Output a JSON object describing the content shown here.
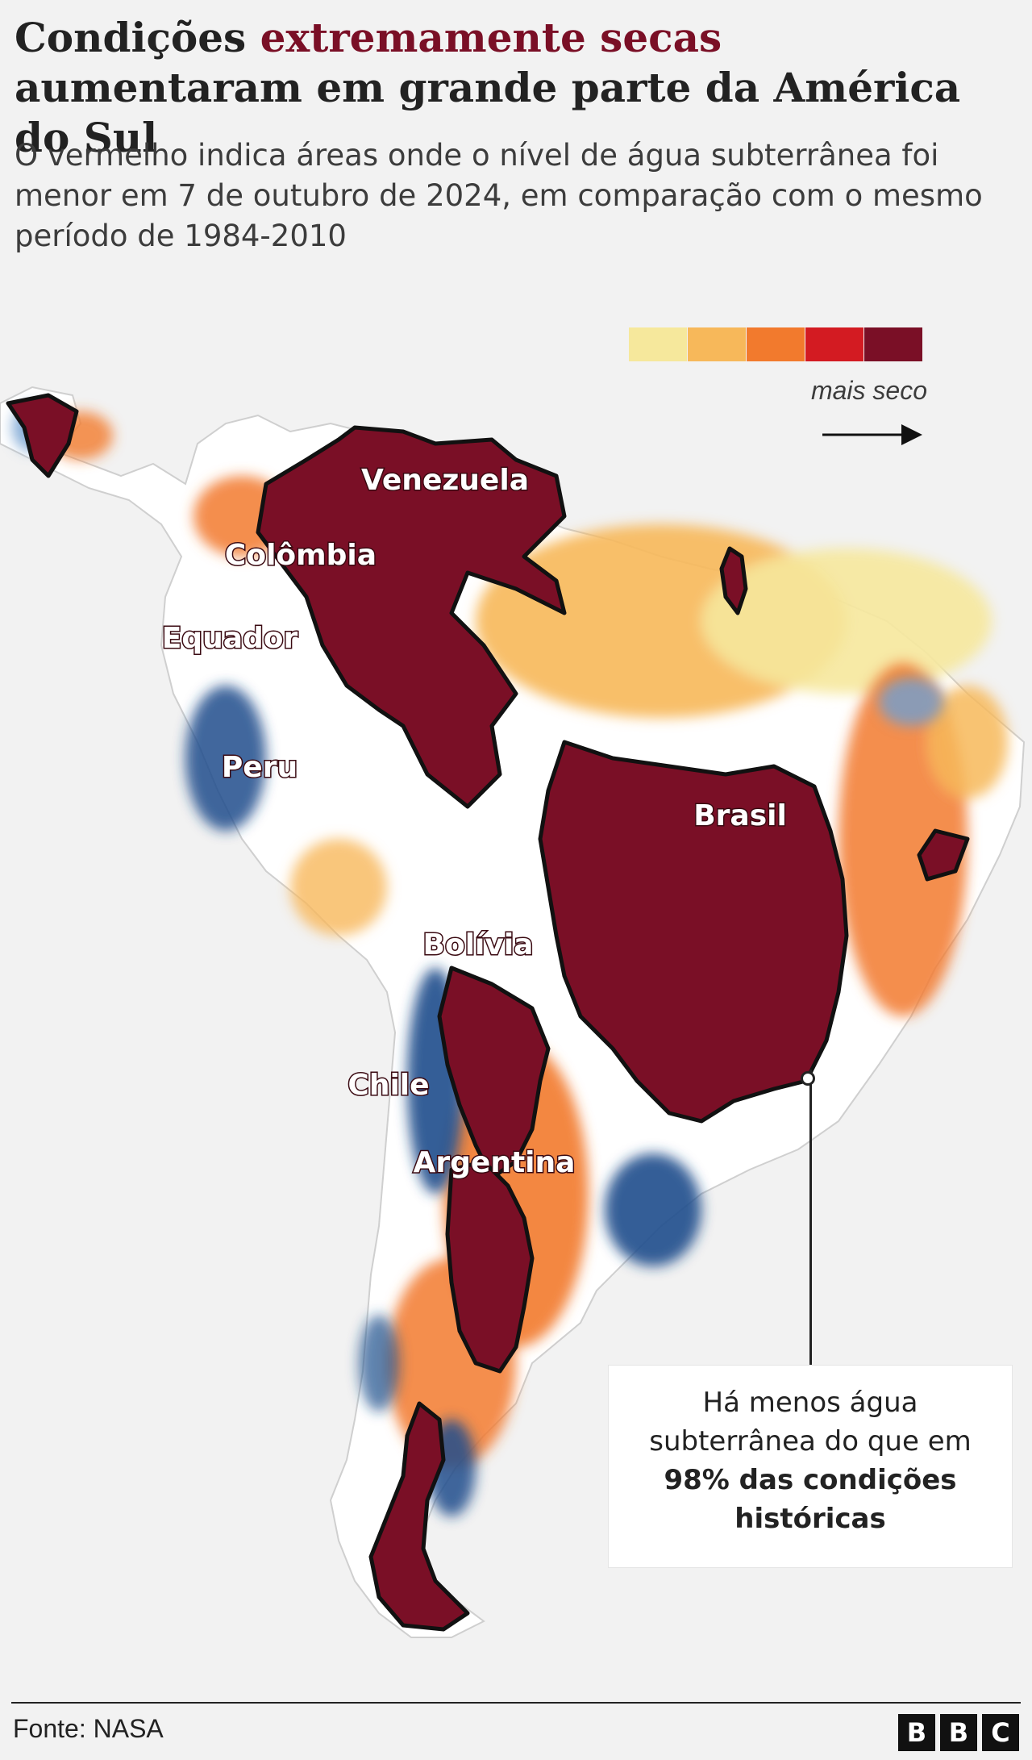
{
  "header": {
    "title_pre": "Condições ",
    "title_highlight": "extremamente secas",
    "title_post": " aumentaram em grande parte da América do Sul",
    "subtitle": "O vermelho indica áreas onde o nível de água subterrânea foi menor em 7 de outubro de 2024, em comparação com o mesmo período de 1984-2010"
  },
  "legend": {
    "label": "mais seco",
    "colors": [
      "#f6e89c",
      "#f7b85a",
      "#f27a2d",
      "#d31b22",
      "#7a0f26"
    ],
    "arrow_icon": "right-arrow-icon"
  },
  "map": {
    "land_color": "#ffffff",
    "extreme_color": "#7a0f26",
    "wet_color": "#1f4e8c",
    "labels": {
      "venezuela": "Venezuela",
      "colombia": "Colômbia",
      "equador": "Equador",
      "peru": "Peru",
      "brasil": "Brasil",
      "bolivia": "Bolívia",
      "chile": "Chile",
      "argentina": "Argentina"
    }
  },
  "annotation": {
    "line1": "Há menos água",
    "line2": "subterrânea do que em",
    "line3": "98% das condições",
    "line4": "históricas"
  },
  "footer": {
    "source": "Fonte: NASA",
    "logo": [
      "B",
      "B",
      "C"
    ]
  }
}
